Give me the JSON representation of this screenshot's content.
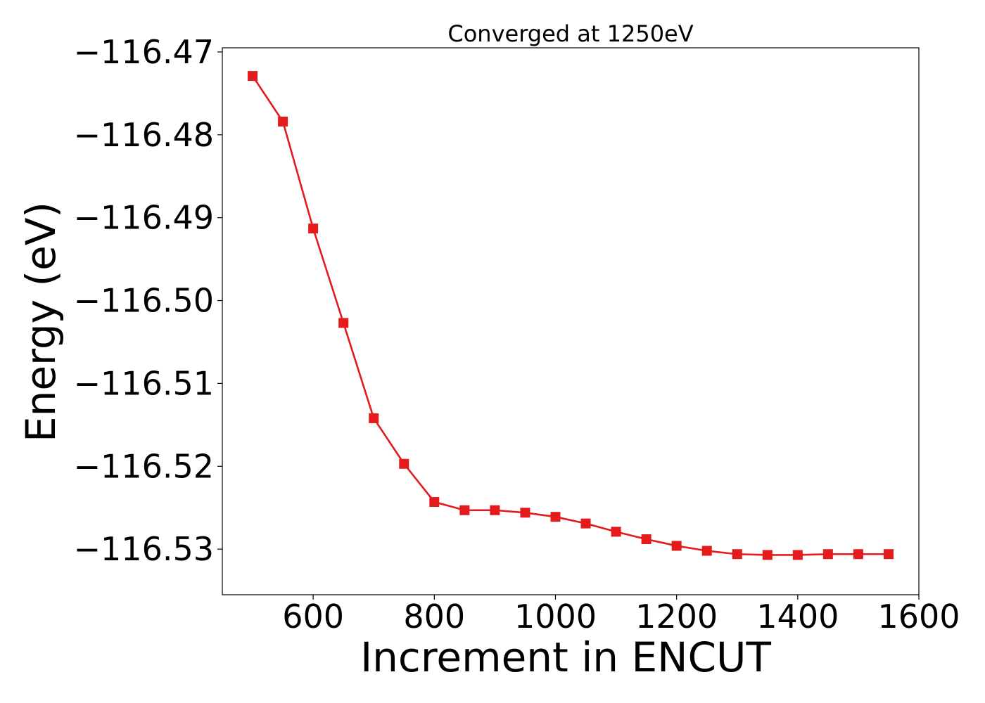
{
  "chart_data": {
    "type": "line",
    "title": "Converged at 1250eV",
    "xlabel": "Increment in ENCUT",
    "ylabel": "Energy (eV)",
    "xlim": [
      450,
      1600
    ],
    "ylim": [
      -116.5355,
      -116.4695
    ],
    "xticks": [
      600,
      800,
      1000,
      1200,
      1400,
      1600
    ],
    "xtick_labels": [
      "600",
      "800",
      "1000",
      "1200",
      "1400",
      "1600"
    ],
    "yticks": [
      -116.47,
      -116.48,
      -116.49,
      -116.5,
      -116.51,
      -116.52,
      -116.53
    ],
    "ytick_labels": [
      "−116.47",
      "−116.48",
      "−116.49",
      "−116.50",
      "−116.51",
      "−116.52",
      "−116.53"
    ],
    "grid": false,
    "series": [
      {
        "color": "#e41a1c",
        "marker": "square",
        "x": [
          500,
          550,
          600,
          650,
          700,
          750,
          800,
          850,
          900,
          950,
          1000,
          1050,
          1100,
          1150,
          1200,
          1250,
          1300,
          1350,
          1400,
          1450,
          1500,
          1550
        ],
        "y": [
          -116.4729,
          -116.4784,
          -116.4913,
          -116.5027,
          -116.5142,
          -116.5197,
          -116.5243,
          -116.5253,
          -116.5253,
          -116.5256,
          -116.5261,
          -116.5269,
          -116.5279,
          -116.5288,
          -116.5296,
          -116.5302,
          -116.5306,
          -116.5307,
          -116.5307,
          -116.5306,
          -116.5306,
          -116.5306
        ]
      }
    ]
  }
}
